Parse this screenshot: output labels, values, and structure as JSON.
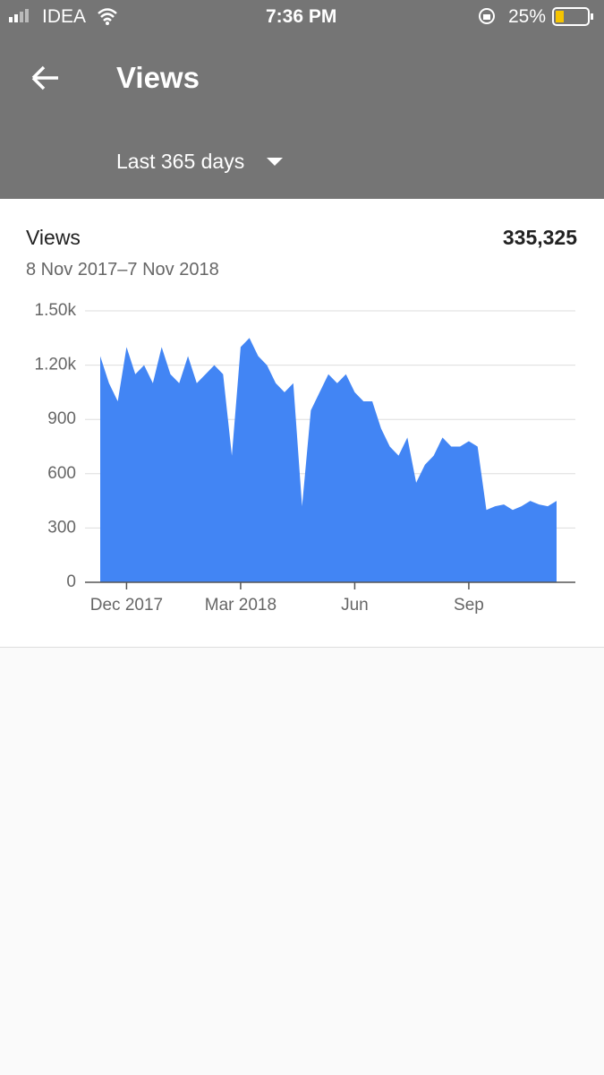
{
  "status_bar": {
    "carrier": "IDEA",
    "time": "7:36 PM",
    "battery": "25%"
  },
  "header": {
    "title": "Views",
    "filter": "Last 365 days"
  },
  "card": {
    "title": "Views",
    "total": "335,325",
    "date_range": "8 Nov 2017–7 Nov 2018"
  },
  "chart_data": {
    "type": "area",
    "color": "#4285f4",
    "grid": true,
    "categories": [
      null,
      null,
      null,
      "Dec 2017",
      null,
      null,
      null,
      null,
      null,
      null,
      null,
      null,
      null,
      null,
      null,
      null,
      "Mar 2018",
      null,
      null,
      null,
      null,
      null,
      null,
      null,
      null,
      null,
      null,
      null,
      null,
      "Jun",
      null,
      null,
      null,
      null,
      null,
      null,
      null,
      null,
      null,
      null,
      null,
      null,
      "Sep",
      null,
      null,
      null,
      null,
      null,
      null,
      null,
      null,
      null,
      null
    ],
    "values": [
      1250,
      1100,
      1000,
      1300,
      1150,
      1200,
      1100,
      1300,
      1150,
      1100,
      1250,
      1100,
      1150,
      1200,
      1150,
      700,
      1300,
      1350,
      1250,
      1200,
      1100,
      1050,
      1100,
      420,
      950,
      1050,
      1150,
      1100,
      1150,
      1050,
      1000,
      1000,
      850,
      750,
      700,
      800,
      550,
      650,
      700,
      800,
      750,
      750,
      780,
      750,
      400,
      420,
      430,
      400,
      420,
      450,
      430,
      420,
      450
    ],
    "ylim": [
      0,
      1500
    ],
    "yticks": [
      0,
      300,
      600,
      900,
      {
        "value": 1200,
        "label": "1.20k"
      },
      {
        "value": 1500,
        "label": "1.50k"
      }
    ]
  }
}
